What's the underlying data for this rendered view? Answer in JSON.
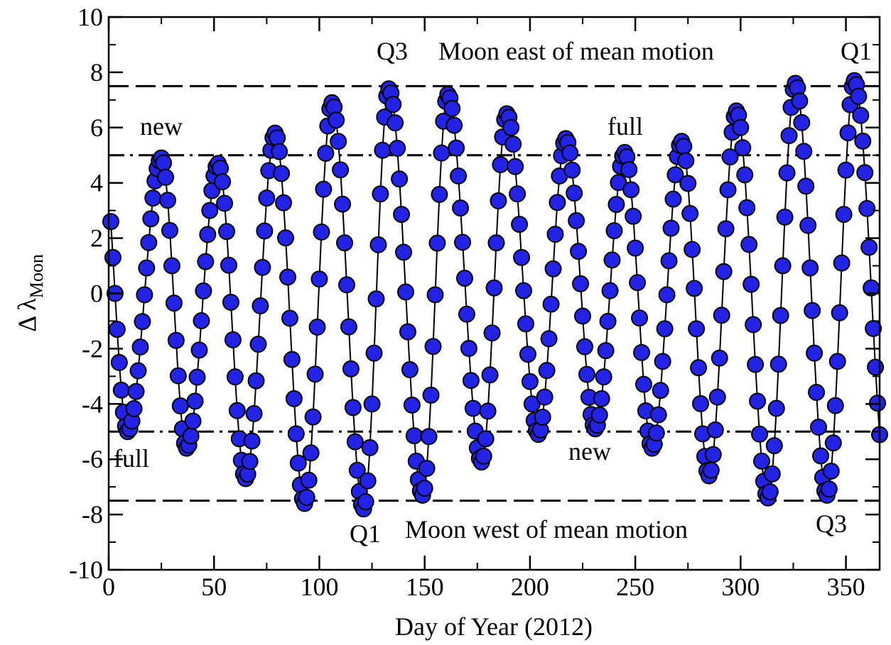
{
  "chart_data": {
    "type": "line-scatter",
    "xlabel": "Day of Year (2012)",
    "ylabel": "Δ λ",
    "ylabel_subscript": "Moon",
    "xlim": [
      0,
      366
    ],
    "ylim": [
      -10,
      10
    ],
    "xticks": [
      0,
      50,
      100,
      150,
      200,
      250,
      300,
      350
    ],
    "yticks": [
      -10,
      -8,
      -6,
      -4,
      -2,
      0,
      2,
      4,
      6,
      8,
      10
    ],
    "minor_ticks": true,
    "marker_color": "#2323e6",
    "line_color": "#000000",
    "reference_lines": [
      {
        "value": 7.5,
        "style": "dashed"
      },
      {
        "value": 5,
        "style": "dashdot"
      },
      {
        "value": -5,
        "style": "dashdot"
      },
      {
        "value": -7.5,
        "style": "dashed"
      }
    ],
    "annotations": [
      "Q3",
      "Moon east of mean motion",
      "Q1",
      "new",
      "full",
      "full",
      "new",
      "Q1",
      "Moon west of mean motion",
      "Q3"
    ],
    "x": [
      1,
      2,
      3,
      4,
      5,
      6,
      7,
      8,
      9,
      10,
      11,
      12,
      13,
      14,
      15,
      16,
      17,
      18,
      19,
      20,
      21,
      22,
      23,
      24,
      25,
      26,
      27,
      28,
      29,
      30,
      31,
      32,
      33,
      34,
      35,
      36,
      37,
      38,
      39,
      40,
      41,
      42,
      43,
      44,
      45,
      46,
      47,
      48,
      49,
      50,
      51,
      52,
      53,
      54,
      55,
      56,
      57,
      58,
      59,
      60,
      61,
      62,
      63,
      64,
      65,
      66,
      67,
      68,
      69,
      70,
      71,
      72,
      73,
      74,
      75,
      76,
      77,
      78,
      79,
      80,
      81,
      82,
      83,
      84,
      85,
      86,
      87,
      88,
      89,
      90,
      91,
      92,
      93,
      94,
      95,
      96,
      97,
      98,
      99,
      100,
      101,
      102,
      103,
      104,
      105,
      106,
      107,
      108,
      109,
      110,
      111,
      112,
      113,
      114,
      115,
      116,
      117,
      118,
      119,
      120,
      121,
      122,
      123,
      124,
      125,
      126,
      127,
      128,
      129,
      130,
      131,
      132,
      133,
      134,
      135,
      136,
      137,
      138,
      139,
      140,
      141,
      142,
      143,
      144,
      145,
      146,
      147,
      148,
      149,
      150,
      151,
      152,
      153,
      154,
      155,
      156,
      157,
      158,
      159,
      160,
      161,
      162,
      163,
      164,
      165,
      166,
      167,
      168,
      169,
      170,
      171,
      172,
      173,
      174,
      175,
      176,
      177,
      178,
      179,
      180,
      181,
      182,
      183,
      184,
      185,
      186,
      187,
      188,
      189,
      190,
      191,
      192,
      193,
      194,
      195,
      196,
      197,
      198,
      199,
      200,
      201,
      202,
      203,
      204,
      205,
      206,
      207,
      208,
      209,
      210,
      211,
      212,
      213,
      214,
      215,
      216,
      217,
      218,
      219,
      220,
      221,
      222,
      223,
      224,
      225,
      226,
      227,
      228,
      229,
      230,
      231,
      232,
      233,
      234,
      235,
      236,
      237,
      238,
      239,
      240,
      241,
      242,
      243,
      244,
      245,
      246,
      247,
      248,
      249,
      250,
      251,
      252,
      253,
      254,
      255,
      256,
      257,
      258,
      259,
      260,
      261,
      262,
      263,
      264,
      265,
      266,
      267,
      268,
      269,
      270,
      271,
      272,
      273,
      274,
      275,
      276,
      277,
      278,
      279,
      280,
      281,
      282,
      283,
      284,
      285,
      286,
      287,
      288,
      289,
      290,
      291,
      292,
      293,
      294,
      295,
      296,
      297,
      298,
      299,
      300,
      301,
      302,
      303,
      304,
      305,
      306,
      307,
      308,
      309,
      310,
      311,
      312,
      313,
      314,
      315,
      316,
      317,
      318,
      319,
      320,
      321,
      322,
      323,
      324,
      325,
      326,
      327,
      328,
      329,
      330,
      331,
      332,
      333,
      334,
      335,
      336,
      337,
      338,
      339,
      340,
      341,
      342,
      343,
      344,
      345,
      346,
      347,
      348,
      349,
      350,
      351,
      352,
      353,
      354,
      355,
      356,
      357,
      358,
      359,
      360,
      361,
      362,
      363,
      364,
      365,
      366
    ],
    "values": [
      2.6,
      1.3,
      0,
      -1.3,
      -2.5,
      -3.5,
      -4.3,
      -4.8,
      -5.0,
      -4.9,
      -4.62,
      -4.17,
      -3.55,
      -2.8,
      -1.94,
      -1.02,
      -0.05,
      0.92,
      1.84,
      2.7,
      3.45,
      4.07,
      4.52,
      4.8,
      4.9,
      4.72,
      4.2,
      3.37,
      2.28,
      1.0,
      -0.35,
      -1.7,
      -2.98,
      -4.07,
      -4.9,
      -5.42,
      -5.6,
      -5.49,
      -5.16,
      -4.62,
      -3.9,
      -3.03,
      -2.05,
      -0.99,
      0.09,
      1.15,
      2.13,
      3.0,
      3.72,
      4.26,
      4.59,
      4.7,
      4.53,
      4.04,
      3.26,
      2.24,
      1.02,
      -0.32,
      -1.68,
      -3.02,
      -4.24,
      -5.26,
      -6.04,
      -6.53,
      -6.7,
      -6.54,
      -6.08,
      -5.34,
      -4.35,
      -3.16,
      -1.84,
      -0.45,
      0.94,
      2.26,
      3.45,
      4.44,
      5.18,
      5.64,
      5.8,
      5.63,
      5.13,
      4.34,
      3.28,
      2.01,
      0.59,
      -0.9,
      -2.39,
      -3.81,
      -5.08,
      -6.14,
      -6.93,
      -7.43,
      -7.6,
      -7.38,
      -6.76,
      -5.77,
      -4.47,
      -2.92,
      -1.22,
      0.52,
      2.22,
      3.77,
      5.07,
      6.06,
      6.68,
      6.9,
      6.74,
      6.27,
      5.5,
      4.47,
      3.23,
      1.83,
      0.31,
      -1.21,
      -2.73,
      -4.13,
      -5.37,
      -6.4,
      -7.17,
      -7.64,
      -7.8,
      -7.54,
      -6.78,
      -5.58,
      -4.0,
      -2.16,
      -0.2,
      1.76,
      3.6,
      5.18,
      6.38,
      7.14,
      7.4,
      7.25,
      6.84,
      6.17,
      5.25,
      4.14,
      2.86,
      1.49,
      0.05,
      -1.39,
      -2.76,
      -4.04,
      -5.15,
      -6.07,
      -6.74,
      -7.15,
      -7.3,
      -7.05,
      -6.33,
      -5.18,
      -3.68,
      -1.92,
      -0.05,
      1.82,
      3.58,
      5.08,
      6.23,
      6.95,
      7.2,
      7.07,
      6.69,
      6.08,
      5.26,
      4.25,
      3.09,
      1.85,
      0.55,
      -0.75,
      -1.99,
      -3.15,
      -4.16,
      -4.98,
      -5.59,
      -5.97,
      -6.1,
      -5.89,
      -5.26,
      -4.26,
      -2.95,
      -1.43,
      0.2,
      1.83,
      3.35,
      4.66,
      5.66,
      6.29,
      6.5,
      6.37,
      6.0,
      5.4,
      4.59,
      3.6,
      2.5,
      1.3,
      0.1,
      -1.1,
      -2.2,
      -3.19,
      -4.0,
      -4.6,
      -4.97,
      -5.1,
      -4.94,
      -4.48,
      -3.75,
      -2.79,
      -1.64,
      -0.39,
      0.89,
      2.14,
      3.29,
      4.25,
      4.98,
      5.44,
      5.6,
      5.46,
      5.08,
      4.46,
      3.63,
      2.63,
      1.52,
      0.35,
      -0.82,
      -1.93,
      -2.93,
      -3.76,
      -4.38,
      -4.76,
      -4.9,
      -4.77,
      -4.4,
      -3.81,
      -3.02,
      -2.07,
      -1.01,
      0.1,
      1.21,
      2.27,
      3.22,
      4.01,
      4.6,
      4.97,
      5.1,
      4.94,
      4.48,
      3.75,
      2.79,
      1.64,
      0.39,
      -0.89,
      -2.14,
      -3.29,
      -4.25,
      -4.98,
      -5.44,
      -5.6,
      -5.46,
      -5.05,
      -4.39,
      -3.51,
      -2.46,
      -1.28,
      -0.05,
      1.18,
      2.36,
      3.41,
      4.29,
      4.95,
      5.36,
      5.5,
      5.32,
      4.8,
      3.98,
      2.89,
      1.59,
      0.18,
      -1.28,
      -2.69,
      -3.99,
      -5.08,
      -5.9,
      -6.42,
      -6.6,
      -6.4,
      -5.83,
      -4.94,
      -3.75,
      -2.34,
      -0.79,
      0.79,
      2.34,
      3.75,
      4.94,
      5.83,
      6.4,
      6.6,
      6.45,
      6.0,
      5.27,
      4.29,
      3.1,
      1.77,
      0.33,
      -1.13,
      -2.57,
      -3.9,
      -5.09,
      -6.07,
      -6.8,
      -7.25,
      -7.4,
      -7.18,
      -6.53,
      -5.51,
      -4.16,
      -2.56,
      -0.8,
      1.0,
      2.76,
      4.36,
      5.71,
      6.73,
      7.38,
      7.6,
      7.44,
      6.96,
      6.18,
      5.14,
      3.88,
      2.46,
      0.92,
      -0.62,
      -2.16,
      -3.58,
      -4.84,
      -5.88,
      -6.66,
      -7.14,
      -7.3,
      -7.08,
      -6.43,
      -5.41,
      -4.06,
      -2.46,
      -0.7,
      1.1,
      2.86,
      4.46,
      5.81,
      6.83,
      7.48,
      7.7,
      7.55,
      7.13,
      6.44,
      5.51,
      4.37,
      3.07,
      1.67,
      0.2,
      -1.27,
      -2.67,
      -3.97,
      -5.11
    ]
  }
}
